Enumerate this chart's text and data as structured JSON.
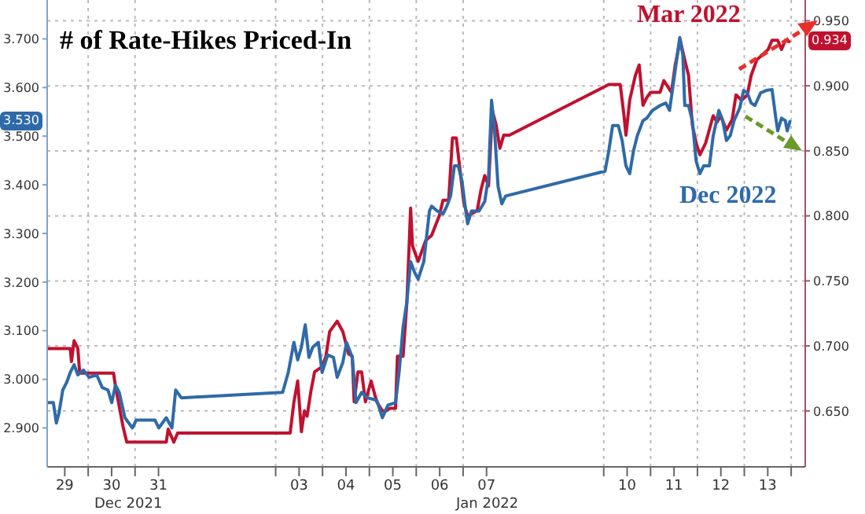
{
  "chart_data": {
    "type": "line",
    "title": "# of Rate-Hikes Priced-In",
    "xlim": [
      "2021-12-29T03:00",
      "2022-01-14T07:12"
    ],
    "xticks": [
      {
        "value": "2021-12-29T12:00",
        "label": "29"
      },
      {
        "value": "2021-12-30T00:00",
        "label": null
      },
      {
        "value": "2021-12-30T12:00",
        "label": "30"
      },
      {
        "value": "2021-12-31T00:00",
        "label": null
      },
      {
        "value": "2021-12-31T12:00",
        "label": "31"
      },
      {
        "value": "2022-01-03T00:00",
        "label": null
      },
      {
        "value": "2022-01-03T12:00",
        "label": "03"
      },
      {
        "value": "2022-01-04T00:00",
        "label": null
      },
      {
        "value": "2022-01-04T12:00",
        "label": "04"
      },
      {
        "value": "2022-01-05T00:00",
        "label": null
      },
      {
        "value": "2022-01-05T12:00",
        "label": "05"
      },
      {
        "value": "2022-01-06T00:00",
        "label": null
      },
      {
        "value": "2022-01-06T12:00",
        "label": "06"
      },
      {
        "value": "2022-01-07T00:00",
        "label": null
      },
      {
        "value": "2022-01-07T12:00",
        "label": "07"
      },
      {
        "value": "2022-01-10T00:00",
        "label": null
      },
      {
        "value": "2022-01-10T12:00",
        "label": "10"
      },
      {
        "value": "2022-01-11T00:00",
        "label": null
      },
      {
        "value": "2022-01-11T12:00",
        "label": "11"
      },
      {
        "value": "2022-01-12T00:00",
        "label": null
      },
      {
        "value": "2022-01-12T12:00",
        "label": "12"
      },
      {
        "value": "2022-01-13T00:00",
        "label": null
      },
      {
        "value": "2022-01-13T12:00",
        "label": "13"
      },
      {
        "value": "2022-01-14T00:00",
        "label": null
      }
    ],
    "ylim": [
      2.82,
      3.78
    ],
    "yticks": [
      {
        "value": 2.9,
        "label": "2.900"
      },
      {
        "value": 3.0,
        "label": "3.000"
      },
      {
        "value": 3.1,
        "label": "3.100"
      },
      {
        "value": 3.2,
        "label": "3.200"
      },
      {
        "value": 3.3,
        "label": "3.300"
      },
      {
        "value": 3.4,
        "label": "3.400"
      },
      {
        "value": 3.5,
        "label": "3.500"
      },
      {
        "value": 3.6,
        "label": "3.600"
      },
      {
        "value": 3.7,
        "label": "3.700"
      }
    ],
    "y2lim": [
      0.607,
      0.966
    ],
    "y2ticks": [
      {
        "value": 0.65,
        "label": "0.650"
      },
      {
        "value": 0.7,
        "label": "0.700"
      },
      {
        "value": 0.75,
        "label": "0.750"
      },
      {
        "value": 0.8,
        "label": "0.800"
      },
      {
        "value": 0.85,
        "label": "0.850"
      },
      {
        "value": 0.9,
        "label": "0.900"
      },
      {
        "value": 0.95,
        "label": "0.950"
      }
    ],
    "grid": true,
    "legend": "top right",
    "annotations": [
      "3.530",
      "Dec 2021",
      "Jan 2022"
    ],
    "series": [
      {
        "name": "Mar 2022",
        "color": "#c0112f",
        "axis": "y2",
        "x": [
          "2021-12-29T03:29",
          "2021-12-29T14:50",
          "2021-12-29T15:26",
          "2021-12-29T16:47",
          "2021-12-29T18:42",
          "2021-12-29T19:39",
          "2021-12-30T13:00",
          "2021-12-30T13:58",
          "2021-12-30T17:50",
          "2021-12-30T19:45",
          "2021-12-31T16:00",
          "2021-12-31T16:58",
          "2021-12-31T19:51",
          "2021-12-31T21:48",
          "2022-01-03T07:25",
          "2022-01-03T09:22",
          "2022-01-03T11:17",
          "2022-01-03T13:12",
          "2022-01-03T14:44",
          "2022-01-03T16:06",
          "2022-01-03T18:02",
          "2022-01-03T19:57",
          "2022-01-03T23:48",
          "2022-01-04T01:44",
          "2022-01-04T03:40",
          "2022-01-04T07:31",
          "2022-01-04T10:25",
          "2022-01-04T13:18",
          "2022-01-04T15:14",
          "2022-01-04T16:12",
          "2022-01-04T18:07",
          "2022-01-04T20:02",
          "2022-01-04T21:59",
          "2022-01-05T00:52",
          "2022-01-05T03:46",
          "2022-01-05T06:39",
          "2022-01-05T08:34",
          "2022-01-05T10:31",
          "2022-01-05T13:24",
          "2022-01-05T14:21",
          "2022-01-05T17:15",
          "2022-01-05T19:11",
          "2022-01-05T21:07",
          "2022-01-05T22:05",
          "2022-01-06T00:58",
          "2022-01-06T04:49",
          "2022-01-06T07:52",
          "2022-01-06T11:46",
          "2022-01-06T13:42",
          "2022-01-06T16:36",
          "2022-01-06T18:33",
          "2022-01-06T20:30",
          "2022-01-06T22:26",
          "2022-01-07T00:23",
          "2022-01-07T02:20",
          "2022-01-07T07:12",
          "2022-01-07T09:09",
          "2022-01-07T11:05",
          "2022-01-07T13:02",
          "2022-01-07T14:57",
          "2022-01-07T16:54",
          "2022-01-07T18:50",
          "2022-01-07T20:47",
          "2022-01-07T23:43",
          "2022-01-10T02:37",
          "2022-01-10T08:27",
          "2022-01-10T10:24",
          "2022-01-10T11:23",
          "2022-01-10T13:19",
          "2022-01-10T16:13",
          "2022-01-10T18:10",
          "2022-01-10T20:07",
          "2022-01-10T22:03",
          "2022-01-11T00:00",
          "2022-01-11T04:51",
          "2022-01-11T06:48",
          "2022-01-11T10:41",
          "2022-01-11T12:37",
          "2022-01-11T15:10",
          "2022-01-11T17:30",
          "2022-01-11T19:26",
          "2022-01-11T21:23",
          "2022-01-11T23:20",
          "2022-01-12T01:16",
          "2022-01-12T04:11",
          "2022-01-12T08:04",
          "2022-01-12T10:00",
          "2022-01-12T11:57",
          "2022-01-12T14:51",
          "2022-01-12T17:47",
          "2022-01-12T19:44",
          "2022-01-12T22:38",
          "2022-01-13T01:34",
          "2022-01-13T03:30",
          "2022-01-13T06:24",
          "2022-01-13T09:20",
          "2022-01-13T12:14",
          "2022-01-13T14:11",
          "2022-01-13T17:07",
          "2022-01-13T19:03",
          "2022-01-13T20:59",
          "2022-01-13T22:55"
        ],
        "values": [
          0.698,
          0.698,
          0.688,
          0.704,
          0.698,
          0.679,
          0.679,
          0.669,
          0.638,
          0.626,
          0.626,
          0.636,
          0.626,
          0.633,
          0.633,
          0.657,
          0.673,
          0.634,
          0.65,
          0.646,
          0.665,
          0.68,
          0.684,
          0.692,
          0.711,
          0.719,
          0.711,
          0.694,
          0.692,
          0.657,
          0.68,
          0.68,
          0.657,
          0.673,
          0.657,
          0.65,
          0.65,
          0.652,
          0.652,
          0.692,
          0.692,
          0.733,
          0.806,
          0.777,
          0.765,
          0.781,
          0.785,
          0.8,
          0.812,
          0.812,
          0.86,
          0.86,
          0.835,
          0.81,
          0.8,
          0.804,
          0.82,
          0.831,
          0.823,
          0.881,
          0.87,
          0.852,
          0.862,
          0.862,
          0.901,
          0.901,
          0.877,
          0.862,
          0.889,
          0.908,
          0.916,
          0.885,
          0.891,
          0.895,
          0.895,
          0.904,
          0.895,
          0.916,
          0.935,
          0.92,
          0.908,
          0.87,
          0.856,
          0.847,
          0.856,
          0.877,
          0.872,
          0.877,
          0.866,
          0.874,
          0.893,
          0.889,
          0.893,
          0.908,
          0.92,
          0.924,
          0.928,
          0.935,
          0.935,
          0.928,
          0.935,
          0.934
        ],
        "value_labels": [
          null,
          null,
          null,
          null,
          null,
          null,
          null,
          null,
          null,
          null,
          null,
          null,
          null,
          null,
          null,
          null,
          null,
          null,
          null,
          null,
          null,
          null,
          null,
          null,
          null,
          null,
          null,
          null,
          null,
          null,
          null,
          null,
          null,
          null,
          null,
          null,
          null,
          null,
          null,
          null,
          null,
          null,
          null,
          null,
          null,
          null,
          null,
          null,
          null,
          null,
          null,
          null,
          null,
          null,
          null,
          null,
          null,
          null,
          null,
          null,
          null,
          null,
          null,
          null,
          null,
          null,
          null,
          null,
          null,
          null,
          null,
          null,
          null,
          null,
          null,
          null,
          null,
          null,
          null,
          null,
          null,
          null,
          null,
          null,
          null,
          null,
          null,
          null,
          null,
          null,
          null,
          null,
          null,
          null,
          null,
          null,
          null,
          null,
          null,
          null,
          null,
          "0.934"
        ]
      },
      {
        "name": "Dec 2022",
        "color": "#2f6aa8",
        "x": [
          "2021-12-29T03:29",
          "2021-12-29T06:10",
          "2021-12-29T07:42",
          "2021-12-29T09:04",
          "2021-12-29T10:59",
          "2021-12-29T12:55",
          "2021-12-29T14:50",
          "2021-12-29T16:47",
          "2021-12-29T18:42",
          "2021-12-29T21:36",
          "2021-12-30T00:29",
          "2021-12-30T04:21",
          "2021-12-30T07:13",
          "2021-12-30T10:08",
          "2021-12-30T12:03",
          "2021-12-30T13:58",
          "2021-12-30T15:55",
          "2021-12-30T18:48",
          "2021-12-30T22:39",
          "2021-12-31T00:35",
          "2021-12-31T10:13",
          "2021-12-31T12:09",
          "2021-12-31T16:00",
          "2021-12-31T18:53",
          "2021-12-31T20:48",
          "2021-12-31T23:43",
          "2022-01-03T03:35",
          "2022-01-03T06:27",
          "2022-01-03T09:22",
          "2022-01-03T11:17",
          "2022-01-03T13:12",
          "2022-01-03T15:09",
          "2022-01-03T17:04",
          "2022-01-03T18:59",
          "2022-01-03T21:53",
          "2022-01-03T23:48",
          "2022-01-04T02:41",
          "2022-01-04T05:36",
          "2022-01-04T07:31",
          "2022-01-04T10:25",
          "2022-01-04T12:20",
          "2022-01-04T15:14",
          "2022-01-04T17:10",
          "2022-01-04T20:02",
          "2022-01-04T22:57",
          "2022-01-05T03:46",
          "2022-01-05T06:39",
          "2022-01-05T09:33",
          "2022-01-05T13:24",
          "2022-01-05T15:20",
          "2022-01-05T17:15",
          "2022-01-05T19:11",
          "2022-01-05T21:07",
          "2022-01-05T23:02",
          "2022-01-06T00:58",
          "2022-01-06T03:52",
          "2022-01-06T06:45",
          "2022-01-06T07:52",
          "2022-01-06T10:47",
          "2022-01-06T13:42",
          "2022-01-06T15:39",
          "2022-01-06T17:36",
          "2022-01-06T19:32",
          "2022-01-06T21:29",
          "2022-01-06T23:25",
          "2022-01-07T01:22",
          "2022-01-07T02:20",
          "2022-01-07T04:16",
          "2022-01-07T08:10",
          "2022-01-07T11:05",
          "2022-01-07T13:02",
          "2022-01-07T14:34",
          "2022-01-07T15:56",
          "2022-01-07T17:53",
          "2022-01-07T19:49",
          "2022-01-07T21:46",
          "2022-01-10T00:40",
          "2022-01-10T02:37",
          "2022-01-10T04:34",
          "2022-01-10T07:29",
          "2022-01-10T09:26",
          "2022-01-10T11:23",
          "2022-01-10T13:19",
          "2022-01-10T15:16",
          "2022-01-10T17:12",
          "2022-01-10T20:07",
          "2022-01-10T22:03",
          "2022-01-11T00:58",
          "2022-01-11T04:51",
          "2022-01-11T07:47",
          "2022-01-11T09:43",
          "2022-01-11T12:37",
          "2022-01-11T14:57",
          "2022-01-11T16:31",
          "2022-01-11T17:30",
          "2022-01-11T19:26",
          "2022-01-11T21:23",
          "2022-01-11T23:20",
          "2022-01-12T01:16",
          "2022-01-12T03:13",
          "2022-01-12T06:07",
          "2022-01-12T08:04",
          "2022-01-12T10:58",
          "2022-01-12T12:55",
          "2022-01-12T14:51",
          "2022-01-12T16:48",
          "2022-01-12T18:45",
          "2022-01-12T21:40",
          "2022-01-12T23:37",
          "2022-01-13T01:34",
          "2022-01-13T03:30",
          "2022-01-13T05:27",
          "2022-01-13T08:21",
          "2022-01-13T11:17",
          "2022-01-13T14:11",
          "2022-01-13T16:08",
          "2022-01-13T17:07",
          "2022-01-13T19:03",
          "2022-01-13T20:59",
          "2022-01-13T21:58",
          "2022-01-13T23:20"
        ],
        "values": [
          2.952,
          2.952,
          2.91,
          2.931,
          2.978,
          2.993,
          3.014,
          3.03,
          3.009,
          3.019,
          3.004,
          3.009,
          2.983,
          2.978,
          2.952,
          2.988,
          2.973,
          2.921,
          2.9,
          2.916,
          2.916,
          2.9,
          2.921,
          2.9,
          2.978,
          2.962,
          2.973,
          3.014,
          3.076,
          3.04,
          3.066,
          3.112,
          3.045,
          3.066,
          3.076,
          3.014,
          3.05,
          3.045,
          3.004,
          3.035,
          3.076,
          3.045,
          2.952,
          2.973,
          2.962,
          2.957,
          2.921,
          2.947,
          2.952,
          3.019,
          3.107,
          3.159,
          3.242,
          3.221,
          3.206,
          3.242,
          3.346,
          3.356,
          3.346,
          3.34,
          3.356,
          3.377,
          3.439,
          3.439,
          3.408,
          3.346,
          3.32,
          3.346,
          3.346,
          3.366,
          3.418,
          3.574,
          3.522,
          3.397,
          3.361,
          3.377,
          3.428,
          3.47,
          3.522,
          3.522,
          3.491,
          3.439,
          3.423,
          3.47,
          3.501,
          3.532,
          3.537,
          3.553,
          3.563,
          3.568,
          3.553,
          3.636,
          3.703,
          3.667,
          3.563,
          3.563,
          3.532,
          3.449,
          3.423,
          3.439,
          3.439,
          3.501,
          3.553,
          3.532,
          3.491,
          3.501,
          3.532,
          3.558,
          3.594,
          3.589,
          3.568,
          3.563,
          3.589,
          3.594,
          3.596,
          3.537,
          3.511,
          3.537,
          3.532,
          3.511,
          3.53
        ]
      }
    ]
  }
}
